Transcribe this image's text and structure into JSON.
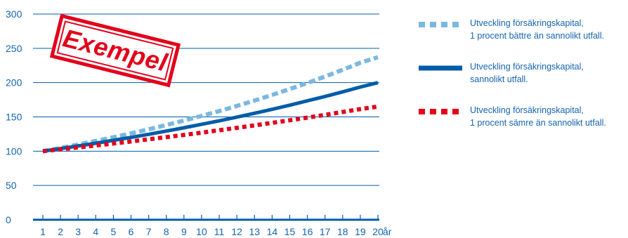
{
  "chart_data": {
    "type": "line",
    "title": "",
    "xlabel": "",
    "ylabel": "",
    "x": [
      1,
      2,
      3,
      4,
      5,
      6,
      7,
      8,
      9,
      10,
      11,
      12,
      13,
      14,
      15,
      16,
      17,
      18,
      19,
      20
    ],
    "x_tick_labels": [
      "1",
      "2",
      "3",
      "4",
      "5",
      "6",
      "7",
      "8",
      "9",
      "10",
      "11",
      "12",
      "13",
      "14",
      "15",
      "16",
      "17",
      "18",
      "19",
      "20"
    ],
    "x_unit_label": "år",
    "ylim": [
      0,
      300
    ],
    "y_ticks": [
      0,
      50,
      100,
      150,
      200,
      250,
      300
    ],
    "grid": "horizontal",
    "legend_position": "right",
    "series": [
      {
        "name": "Utveckling försäkringskapital, 1 procent bättre än sannolikt utfall.",
        "legend_lines": [
          "Utveckling försäkringskapital,",
          "1 procent bättre än sannolikt utfall."
        ],
        "color": "#7ab8e0",
        "style": "dashed",
        "values": [
          100.0,
          104.7,
          109.7,
          114.9,
          120.3,
          126.0,
          131.9,
          138.1,
          144.6,
          151.4,
          158.5,
          166.0,
          173.8,
          182.0,
          190.6,
          199.5,
          208.9,
          218.7,
          229.0,
          237.0
        ]
      },
      {
        "name": "Utveckling försäkringskapital, sannolikt utfall.",
        "legend_lines": [
          "Utveckling försäkringskapital,",
          "sannolikt utfall."
        ],
        "color": "#005ca9",
        "style": "solid",
        "values": [
          100.0,
          103.7,
          107.6,
          111.6,
          115.8,
          120.1,
          124.6,
          129.3,
          134.1,
          139.1,
          144.3,
          149.7,
          155.3,
          161.1,
          167.1,
          173.4,
          179.8,
          186.6,
          193.5,
          200.0
        ]
      },
      {
        "name": "Utveckling försäkringskapital, 1 procent sämre än sannolikt utfall.",
        "legend_lines": [
          "Utveckling försäkringskapital,",
          "1 procent sämre än sannolikt utfall."
        ],
        "color": "#e3001b",
        "style": "dotted",
        "values": [
          100.0,
          102.7,
          105.5,
          108.3,
          111.2,
          114.2,
          117.3,
          120.5,
          123.7,
          127.0,
          130.5,
          134.0,
          137.6,
          141.3,
          145.1,
          149.0,
          153.0,
          157.2,
          161.4,
          165.0
        ]
      }
    ]
  },
  "stamp": {
    "text": "Exempel",
    "color": "#e3001b"
  },
  "colors": {
    "axis": "#005ca9",
    "grid": "#005ca9",
    "text": "#1564b0"
  }
}
